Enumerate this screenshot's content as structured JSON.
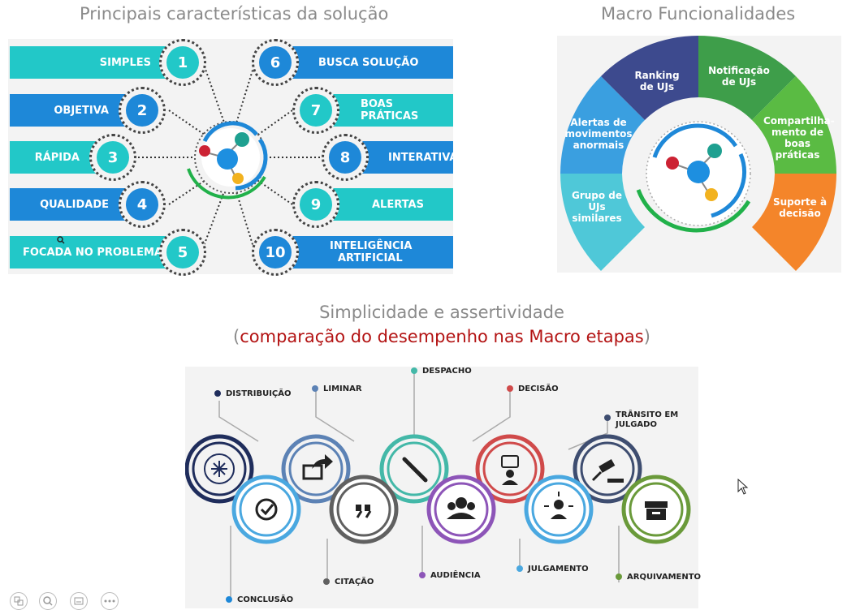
{
  "titles": {
    "left": "Principais características da solução",
    "right": "Macro Funcionalidades",
    "middle_main": "Simplicidade e assertividade",
    "middle_open": "(",
    "middle_sub": "comparação do desempenho nas Macro etapas",
    "middle_close": ")"
  },
  "features_left": [
    {
      "label": "SIMPLES",
      "number": "1"
    },
    {
      "label": "OBJETIVA",
      "number": "2"
    },
    {
      "label": "RÁPIDA",
      "number": "3"
    },
    {
      "label": "QUALIDADE",
      "number": "4"
    },
    {
      "label": "FOCADA NO PROBLEMA",
      "number": "5"
    }
  ],
  "features_right": [
    {
      "label": "BUSCA SOLUÇÃO",
      "number": "6"
    },
    {
      "label": "BOAS PRÁTICAS",
      "number": "7"
    },
    {
      "label": "INTERATIVA",
      "number": "8"
    },
    {
      "label": "ALERTAS",
      "number": "9"
    },
    {
      "label_line1": "INTELIGÊNCIA",
      "label_line2": "ARTIFICIAL",
      "number": "10"
    }
  ],
  "macro_functions": {
    "ranking": "Ranking de UJs",
    "notificacao": "Notificação de UJs",
    "alertas": "Alertas de movimentos anormais",
    "compartilhamento": "Compartilha-mento de boas práticas",
    "grupo": "Grupo de UJs similares",
    "suporte": "Suporte à decisão"
  },
  "stages": {
    "distribuicao": "DISTRIBUIÇÃO",
    "liminar": "LIMINAR",
    "despacho": "DESPACHO",
    "decisao": "DECISÃO",
    "transito_line1": "TRÂNSITO EM",
    "transito_line2": "JULGADO",
    "conclusao": "CONCLUSÃO",
    "citacao": "CITAÇÃO",
    "audiencia": "AUDIÊNCIA",
    "julgamento": "JULGAMENTO",
    "arquivamento": "ARQUIVAMENTO"
  },
  "icons": [
    "share-icon",
    "arrow-forward-icon",
    "quill-icon",
    "voting-person-icon",
    "gavel-icon",
    "check-icon",
    "quote-icon",
    "audience-icon",
    "judge-icon",
    "archive-icon"
  ],
  "colors": {
    "teal": "#22c8c8",
    "blue": "#1e88d8",
    "navy": "#1f2d5c",
    "steel": "#5c82b5",
    "aqua": "#43b8a8",
    "red": "#d04a4a",
    "slate": "#3e4d70",
    "purple": "#8d55b8",
    "lightblue": "#4aa8e0",
    "gray": "#606060",
    "green": "#6a9a3a"
  }
}
